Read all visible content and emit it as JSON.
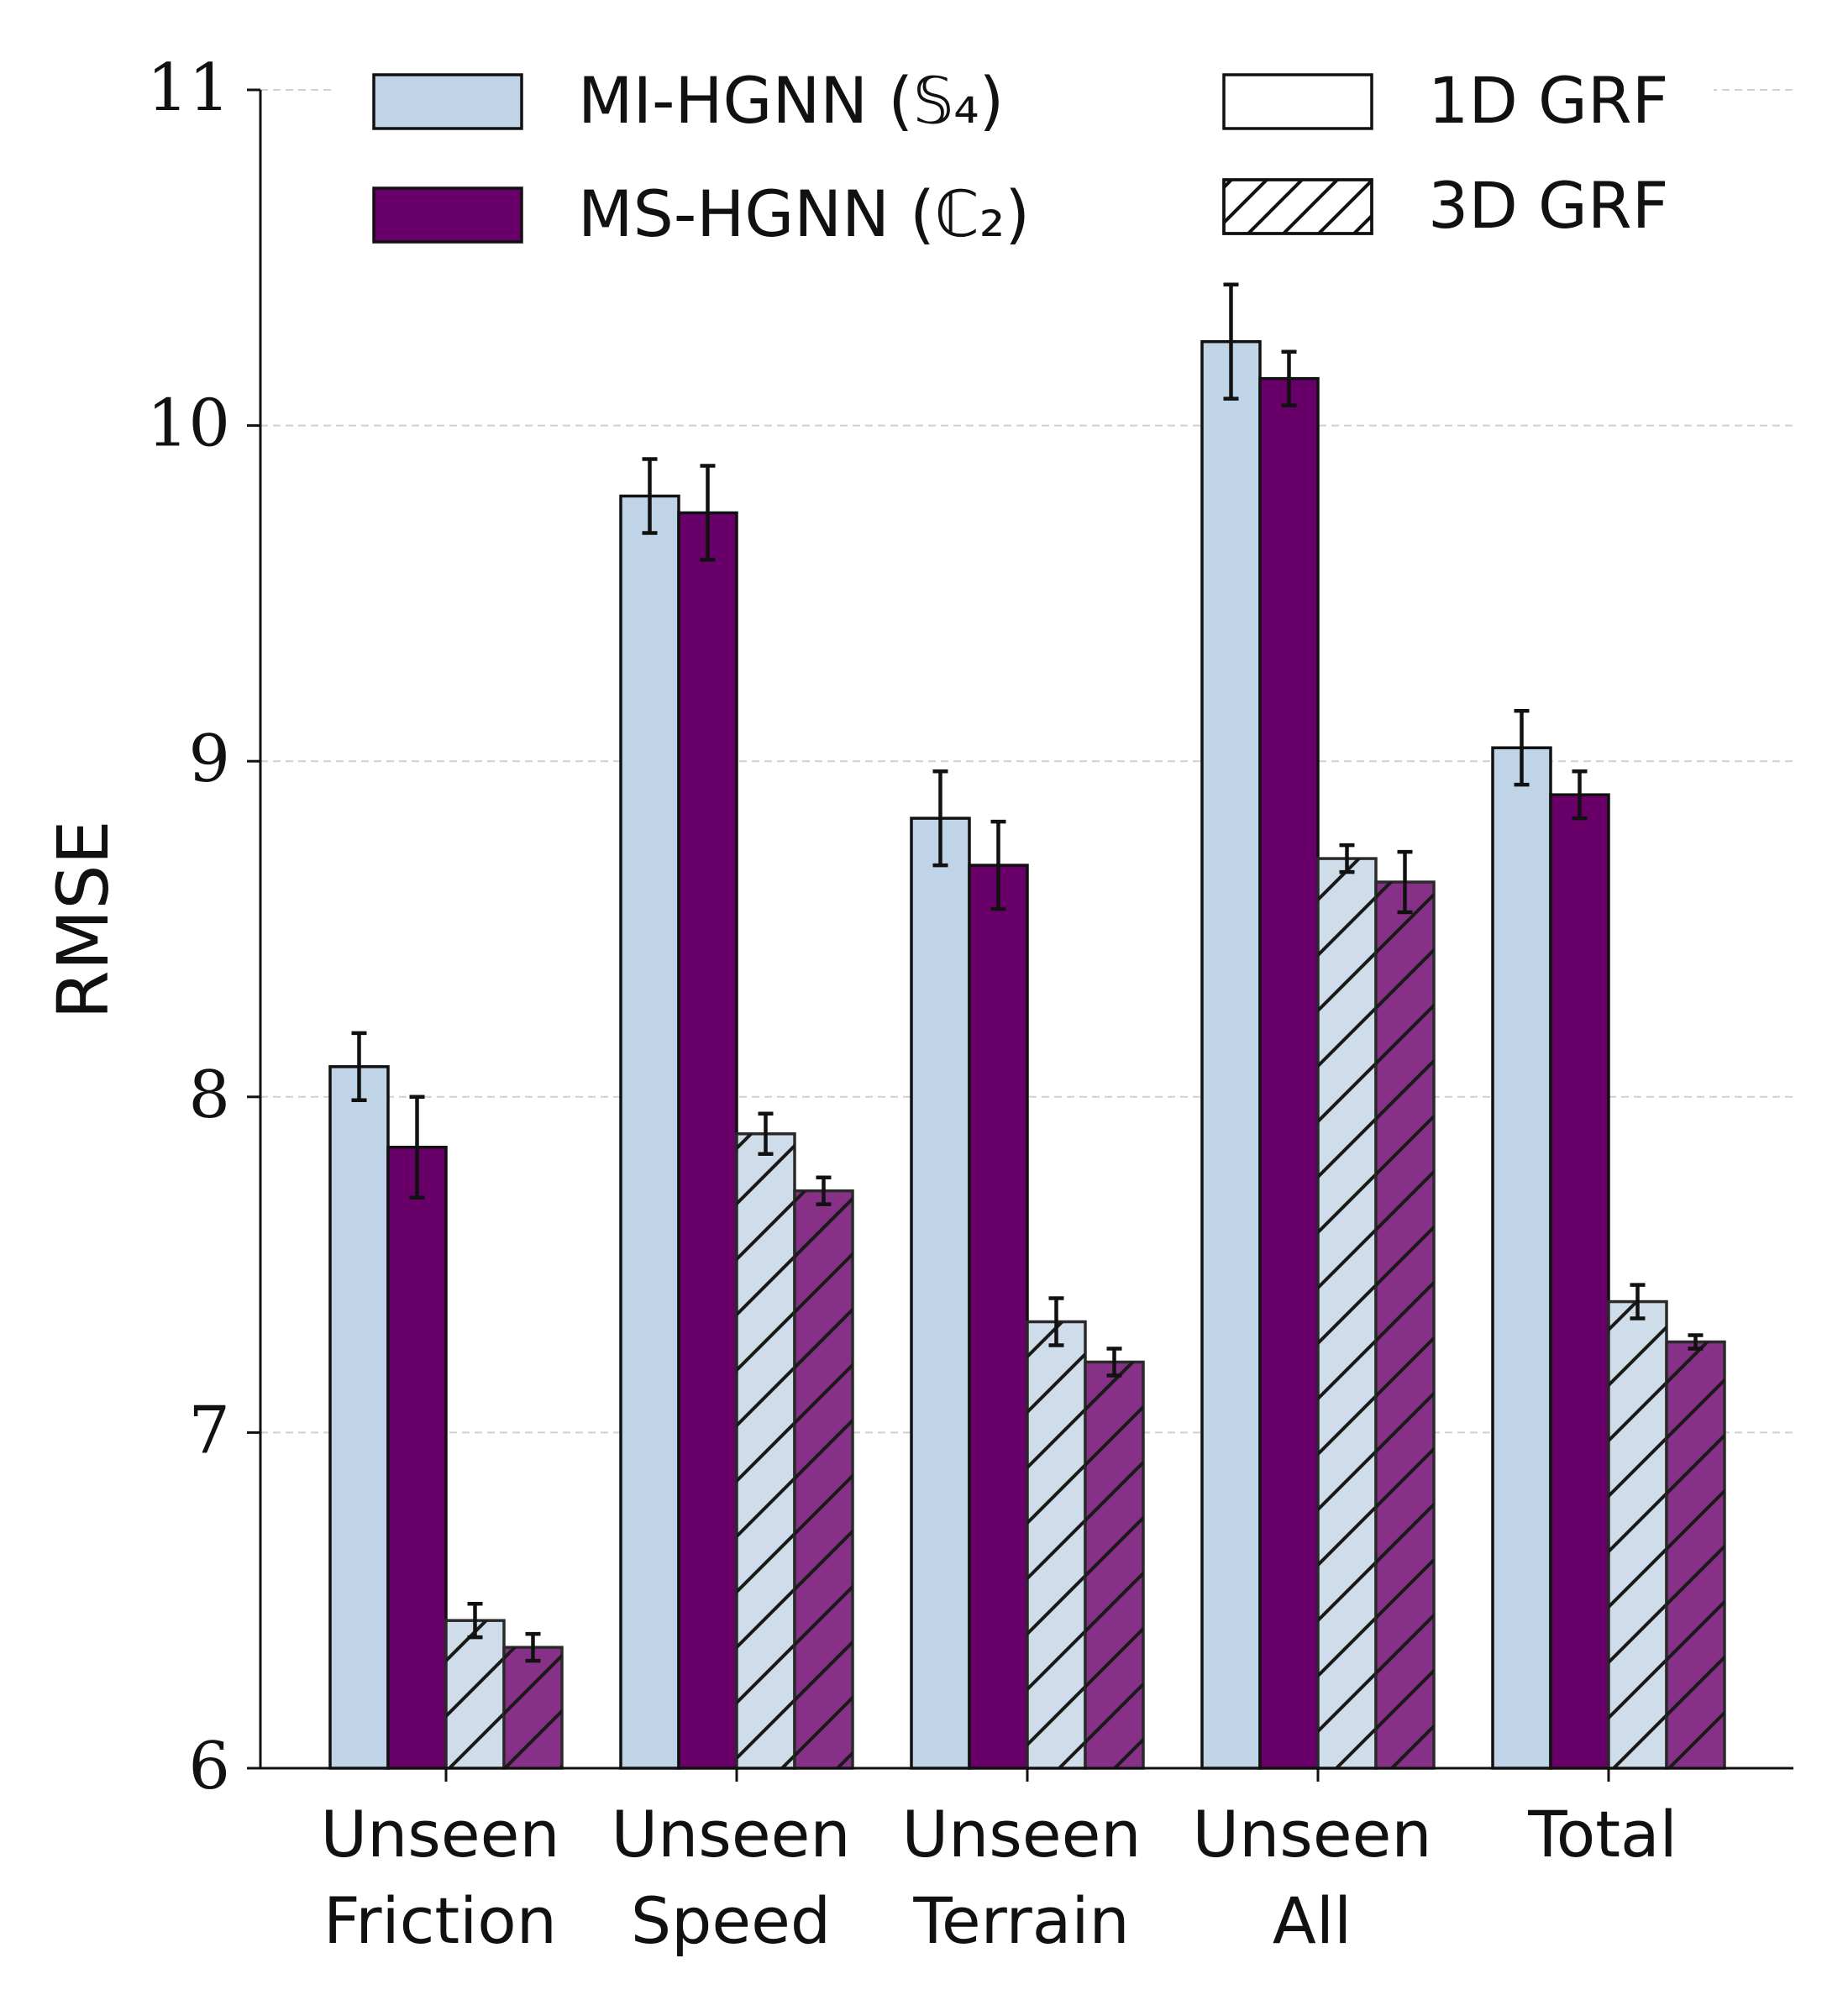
{
  "chart_data": {
    "type": "bar",
    "ylabel": "RMSE",
    "ylim": [
      6,
      11
    ],
    "yticks": [
      "6",
      "7",
      "8",
      "9",
      "10",
      "11"
    ],
    "grid": "horizontal dashed",
    "categories": [
      [
        "Unseen",
        "Friction"
      ],
      [
        "Unseen",
        "Speed"
      ],
      [
        "Unseen",
        "Terrain"
      ],
      [
        "Unseen",
        "All"
      ],
      [
        "Total"
      ]
    ],
    "series": [
      {
        "name": "MI-HGNN (𝕊₄) 1D GRF",
        "model": "mi",
        "grf": "1d",
        "values": [
          8.09,
          9.79,
          8.83,
          10.25,
          9.04
        ],
        "errors": [
          0.1,
          0.11,
          0.14,
          0.17,
          0.11
        ]
      },
      {
        "name": "MS-HGNN (ℂ₂) 1D GRF",
        "model": "ms",
        "grf": "1d",
        "values": [
          7.85,
          9.74,
          8.69,
          10.14,
          8.9
        ],
        "errors": [
          0.15,
          0.14,
          0.13,
          0.08,
          0.07
        ]
      },
      {
        "name": "MI-HGNN (𝕊₄) 3D GRF",
        "model": "mi",
        "grf": "3d",
        "values": [
          6.44,
          7.89,
          7.33,
          8.71,
          7.39
        ],
        "errors": [
          0.05,
          0.06,
          0.07,
          0.04,
          0.05
        ]
      },
      {
        "name": "MS-HGNN (ℂ₂) 3D GRF",
        "model": "ms",
        "grf": "3d",
        "values": [
          6.36,
          7.72,
          7.21,
          8.64,
          7.27
        ],
        "errors": [
          0.04,
          0.04,
          0.04,
          0.09,
          0.02
        ]
      }
    ],
    "legend": {
      "placement": "top",
      "models": [
        {
          "key": "mi",
          "label": "MI-HGNN (𝕊₄)"
        },
        {
          "key": "ms",
          "label": "MS-HGNN (ℂ₂)"
        }
      ],
      "grf": [
        {
          "key": "1d",
          "label": "1D GRF"
        },
        {
          "key": "3d",
          "label": "3D GRF"
        }
      ]
    },
    "colors": {
      "mi_1d": "#c0d4e8",
      "ms_1d": "#69006a",
      "mi_3d": "#cfddeb",
      "ms_3d": "#863187",
      "edge": "#111111",
      "grid": "#d0d0d0"
    }
  }
}
